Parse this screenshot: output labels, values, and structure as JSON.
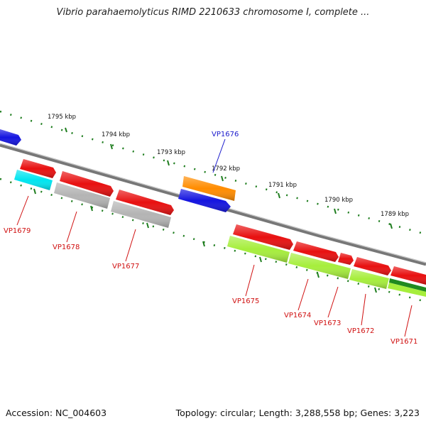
{
  "title": "Vibrio parahaemolyticus RIMD 2210633 chromosome I, complete ...",
  "footer": {
    "accession": "Accession: NC_004603",
    "summary": "Topology: circular; Length: 3,288,558 bp; Genes: 3,223"
  },
  "colors": {
    "backbone": "#8a8a8a",
    "tick": "#1e7d1e",
    "label_top": "#1a1acc",
    "label_bottom": "#d01010",
    "red": "#e81010",
    "blue": "#1414e0",
    "orange": "#ff8c00",
    "cyan": "#00e5f0",
    "gray": "#b4b4b4",
    "light_green": "#a6ee3c",
    "dark_green": "#208a20"
  },
  "scale_labels": [
    "1795 kbp",
    "1794 kbp",
    "1793 kbp",
    "1792 kbp",
    "1791 kbp",
    "1790 kbp",
    "1789 kbp"
  ],
  "gene_labels": [
    {
      "id": "VP1676",
      "strand": "top"
    },
    {
      "id": "VP1679",
      "strand": "bottom"
    },
    {
      "id": "VP1678",
      "strand": "bottom"
    },
    {
      "id": "VP1677",
      "strand": "bottom"
    },
    {
      "id": "VP1675",
      "strand": "bottom"
    },
    {
      "id": "VP1674",
      "strand": "bottom"
    },
    {
      "id": "VP1673",
      "strand": "bottom"
    },
    {
      "id": "VP1672",
      "strand": "bottom"
    },
    {
      "id": "VP1671",
      "strand": "bottom"
    }
  ]
}
